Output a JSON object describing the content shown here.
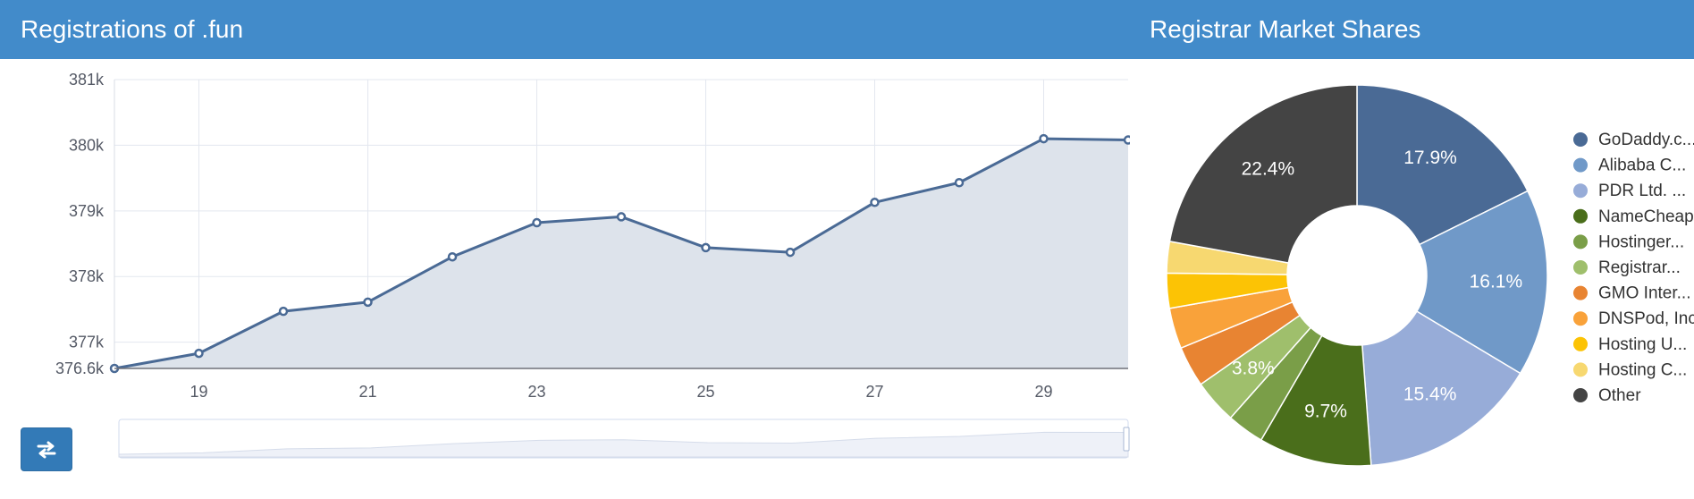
{
  "left_panel": {
    "title": "Registrations of .fun"
  },
  "right_panel": {
    "title": "Registrar Market Shares"
  },
  "colors": {
    "header": "#428bca",
    "line": "#4a6a95",
    "area": "#dde3eb",
    "button": "#337ab7"
  },
  "switch_button": {
    "icon": "swap-arrows-icon"
  },
  "chart_data": [
    {
      "type": "area",
      "title": "Registrations of .fun",
      "x": [
        18,
        19,
        20,
        21,
        22,
        23,
        24,
        25,
        26,
        27,
        28,
        29,
        30
      ],
      "values": [
        376600,
        376830,
        377470,
        377610,
        378300,
        378820,
        378910,
        378440,
        378370,
        379130,
        379430,
        380100,
        380080
      ],
      "xtick_values": [
        19,
        21,
        23,
        25,
        27,
        29
      ],
      "xtick_labels": [
        "19",
        "21",
        "23",
        "25",
        "27",
        "29"
      ],
      "ytick_values": [
        376600,
        377000,
        378000,
        379000,
        380000,
        381000
      ],
      "ytick_labels": [
        "376.6k",
        "377k",
        "378k",
        "379k",
        "380k",
        "381k"
      ],
      "ylim": [
        376600,
        381000
      ],
      "xlim": [
        18,
        30
      ],
      "grid": true,
      "zoom_slider": true
    },
    {
      "type": "pie",
      "title": "Registrar Market Shares",
      "donut": true,
      "legend_position": "right",
      "slices": [
        {
          "name": "GoDaddy.c...",
          "value": 17.9,
          "label": "17.9%",
          "color": "#4a6a95"
        },
        {
          "name": "Alibaba C...",
          "value": 16.1,
          "label": "16.1%",
          "color": "#7099c8"
        },
        {
          "name": "PDR Ltd. ...",
          "value": 15.4,
          "label": "15.4%",
          "color": "#97acd8"
        },
        {
          "name": "NameCheap",
          "value": 9.7,
          "label": "9.7%",
          "color": "#4a6e1b"
        },
        {
          "name": "Hostinger...",
          "value": 3.2,
          "label": "",
          "color": "#7a9e48"
        },
        {
          "name": "Registrar...",
          "value": 3.8,
          "label": "3.8%",
          "color": "#9fbf6c"
        },
        {
          "name": "GMO Inter...",
          "value": 3.5,
          "label": "",
          "color": "#e88432"
        },
        {
          "name": "DNSPod, Inc",
          "value": 3.5,
          "label": "",
          "color": "#f9a23a"
        },
        {
          "name": "Hosting U...",
          "value": 3.0,
          "label": "",
          "color": "#fcc305"
        },
        {
          "name": "Hosting C...",
          "value": 2.7,
          "label": "",
          "color": "#f7d870"
        },
        {
          "name": "Other",
          "value": 22.4,
          "label": "22.4%",
          "color": "#444444"
        }
      ]
    }
  ]
}
